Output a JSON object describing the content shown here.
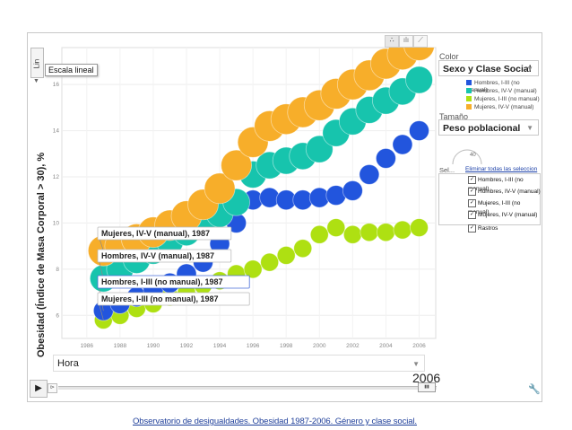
{
  "panel": {
    "color_label": "Color",
    "color_value": "Sexo y Clase Social",
    "size_label": "Tamaño",
    "size_value": "Peso poblacional",
    "size_dial_value": "40",
    "select_label": "Sel...",
    "clear_selection": "Eliminar todas las seleccion",
    "trails_label": "Rastros",
    "scale_label": "Escala lineal",
    "y_scale_button": "Lin"
  },
  "playback": {
    "time_dropdown": "Hora",
    "current_year": "2006"
  },
  "footer": {
    "link_text": "Observatorio de desigualdades. Obesidad 1987-2006. Género y clase social."
  },
  "colors": {
    "Hombres, I-III (no manual)": "#2255dd",
    "Hombres, IV-V (manual)": "#17c4ad",
    "Mujeres, I-III (no manual)": "#aee012",
    "Mujeres, IV-V (manual)": "#f7ae2a"
  },
  "chart_data": {
    "type": "scatter",
    "xlabel": "",
    "ylabel": "Obesidad (Índice de Masa Corporal > 30), %",
    "xlim": [
      1984.5,
      2007
    ],
    "ylim": [
      5.0,
      17.6
    ],
    "x_ticks": [
      1986,
      1988,
      1990,
      1992,
      1994,
      1996,
      1998,
      2000,
      2002,
      2004,
      2006
    ],
    "y_ticks": [
      6,
      8,
      10,
      12,
      14,
      16
    ],
    "series": [
      {
        "name": "Hombres, I-III (no manual)",
        "x": [
          1987,
          1988,
          1989,
          1990,
          1991,
          1992,
          1993,
          1994,
          1995,
          1996,
          1997,
          1998,
          1999,
          2000,
          2001,
          2002,
          2003,
          2004,
          2005,
          2006
        ],
        "y": [
          6.2,
          6.5,
          6.8,
          7.1,
          7.4,
          7.8,
          8.3,
          9.1,
          10.0,
          11.0,
          11.1,
          11.0,
          11.0,
          11.1,
          11.2,
          11.4,
          12.1,
          12.8,
          13.4,
          14.0
        ]
      },
      {
        "name": "Hombres, IV-V (manual)",
        "x": [
          1987,
          1988,
          1989,
          1990,
          1991,
          1992,
          1993,
          1994,
          1995,
          1996,
          1997,
          1998,
          1999,
          2000,
          2001,
          2002,
          2003,
          2004,
          2005,
          2006
        ],
        "y": [
          7.6,
          8.0,
          8.4,
          8.8,
          9.2,
          9.6,
          10.0,
          10.4,
          10.9,
          12.1,
          12.5,
          12.7,
          12.9,
          13.2,
          13.9,
          14.4,
          14.9,
          15.3,
          15.7,
          16.2
        ]
      },
      {
        "name": "Mujeres, I-III (no manual)",
        "x": [
          1987,
          1988,
          1989,
          1990,
          1991,
          1992,
          1993,
          1994,
          1995,
          1996,
          1997,
          1998,
          1999,
          2000,
          2001,
          2002,
          2003,
          2004,
          2005,
          2006
        ],
        "y": [
          5.8,
          6.0,
          6.3,
          6.5,
          6.8,
          7.0,
          7.3,
          7.5,
          7.8,
          8.0,
          8.3,
          8.6,
          8.9,
          9.5,
          9.8,
          9.5,
          9.6,
          9.6,
          9.7,
          9.8
        ]
      },
      {
        "name": "Mujeres, IV-V (manual)",
        "x": [
          1987,
          1988,
          1989,
          1990,
          1991,
          1992,
          1993,
          1994,
          1995,
          1996,
          1997,
          1998,
          1999,
          2000,
          2001,
          2002,
          2003,
          2004,
          2005,
          2006
        ],
        "y": [
          8.8,
          9.0,
          9.3,
          9.6,
          9.9,
          10.3,
          10.8,
          11.5,
          12.5,
          13.5,
          14.2,
          14.5,
          14.8,
          15.1,
          15.6,
          16.0,
          16.4,
          16.9,
          17.3,
          17.7
        ]
      }
    ],
    "labels": [
      {
        "text": "Mujeres, IV-V (manual), 1987",
        "series": 3
      },
      {
        "text": "Hombres, IV-V (manual), 1987",
        "series": 1
      },
      {
        "text": "Hombres, I-III (no manual), 1987",
        "series": 0
      },
      {
        "text": "Mujeres, I-III (no manual), 1987",
        "series": 2
      }
    ],
    "legend": [
      "Hombres, I-III (no manual)",
      "Hombres, IV-V (manual)",
      "Mujeres, I-III (no manual)",
      "Mujeres, IV-V (manual)"
    ],
    "checked_items": [
      "Hombres, I-III (no manual)",
      "Hombres, IV-V (manual)",
      "Mujeres, I-III (no manual)",
      "Mujeres, IV-V (manual)"
    ]
  }
}
